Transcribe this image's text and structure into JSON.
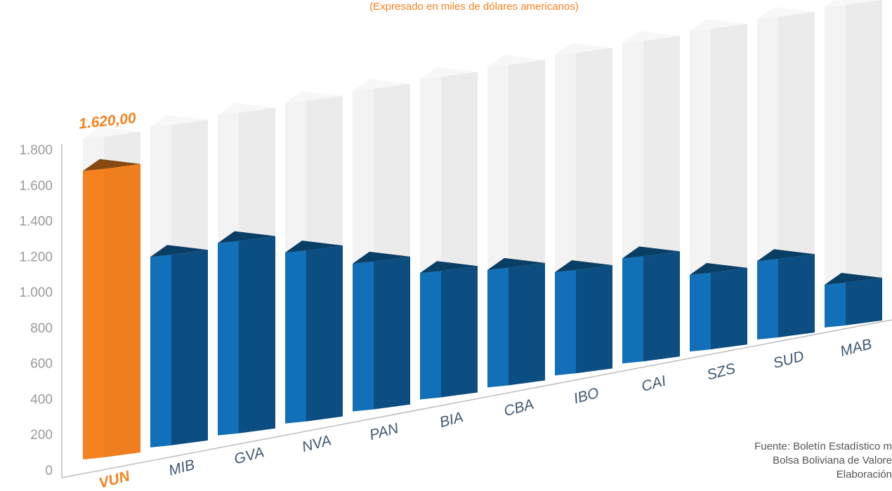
{
  "chart_data": {
    "type": "bar3d",
    "subtitle": "(Expresado en miles de dólares americanos)",
    "categories": [
      "VUN",
      "MIB",
      "GVA",
      "NVA",
      "PAN",
      "BIA",
      "CBA",
      "IBO",
      "CAI",
      "SZS",
      "SUD",
      "MAB"
    ],
    "values": [
      1620,
      1070,
      1080,
      960,
      830,
      710,
      660,
      580,
      590,
      430,
      440,
      240
    ],
    "value_labels": [
      "1.620,00",
      null,
      null,
      null,
      null,
      null,
      null,
      null,
      null,
      null,
      null,
      null
    ],
    "colors": [
      "#f5821f",
      "#1170b8",
      "#1170b8",
      "#1170b8",
      "#1170b8",
      "#1170b8",
      "#1170b8",
      "#1170b8",
      "#1170b8",
      "#1170b8",
      "#1170b8",
      "#1170b8"
    ],
    "ylim": [
      0,
      1800
    ],
    "yticks": [
      0,
      200,
      400,
      600,
      800,
      {
        "value": 1000,
        "label": "1.000"
      },
      {
        "value": 1200,
        "label": "1.200"
      },
      {
        "value": 1400,
        "label": "1.400"
      },
      {
        "value": 1600,
        "label": "1.600"
      },
      {
        "value": 1800,
        "label": "1.800"
      }
    ],
    "source": [
      "Fuente: Boletín Estadístico m",
      "Bolsa Boliviana de Valore",
      "Elaboración"
    ]
  }
}
